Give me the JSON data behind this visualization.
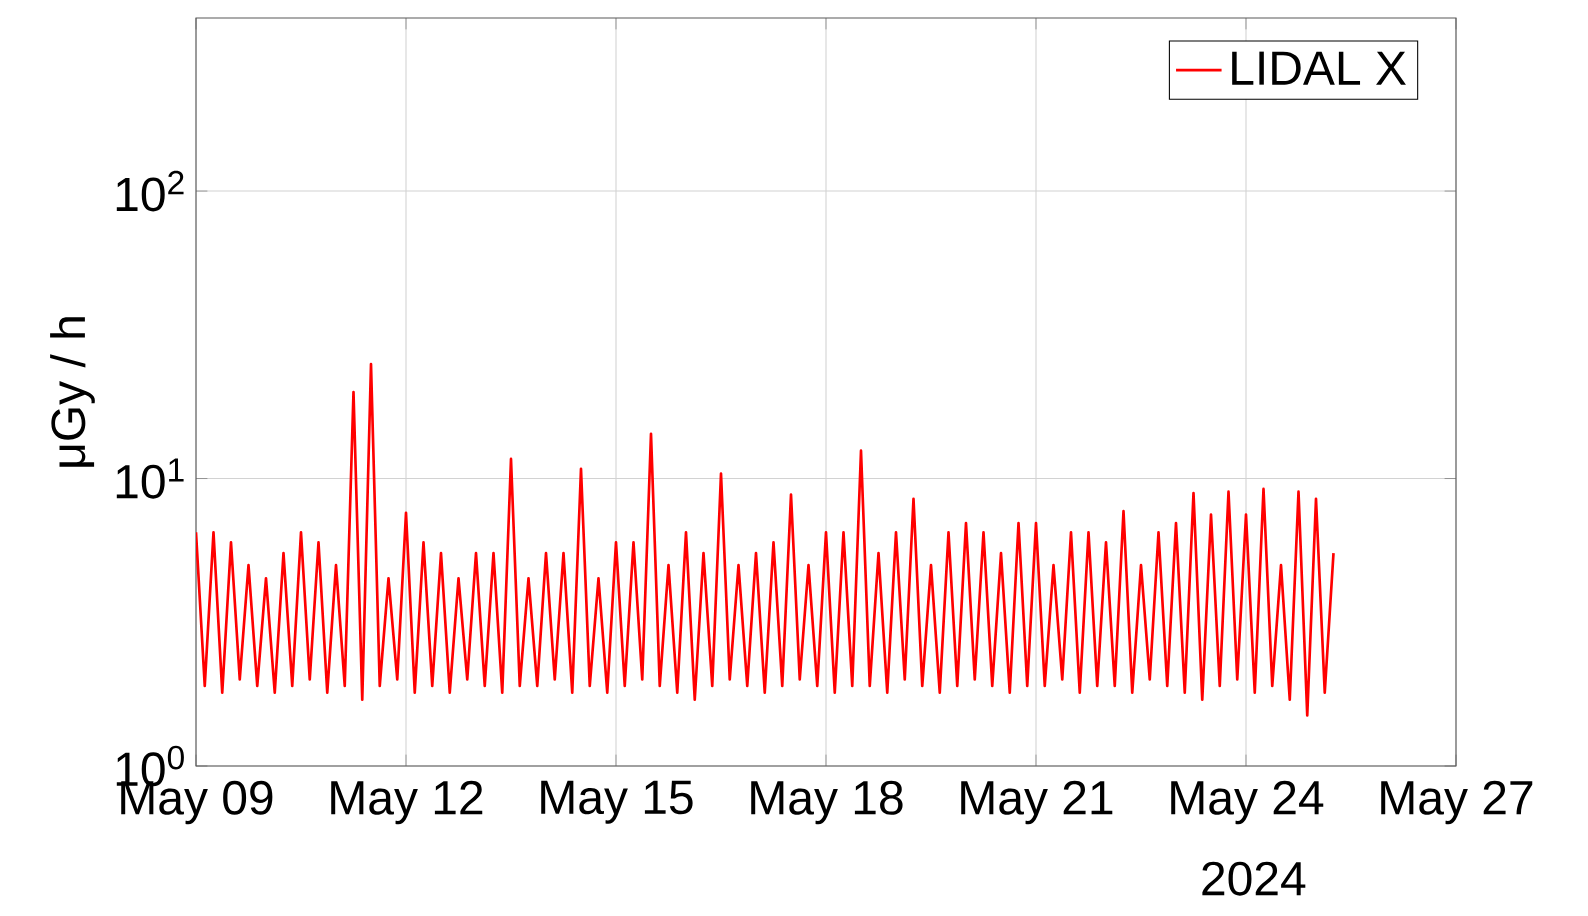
{
  "chart_data": {
    "type": "line",
    "ylabel": "μGy / h",
    "log": "y",
    "grid": true,
    "legend": "top right",
    "xlim": [
      "2024-05-09",
      "2024-05-27"
    ],
    "xticks": [
      {
        "value": "2024-05-09",
        "label": "May 09"
      },
      {
        "value": "2024-05-12",
        "label": "May 12"
      },
      {
        "value": "2024-05-15",
        "label": "May 15"
      },
      {
        "value": "2024-05-18",
        "label": "May 18"
      },
      {
        "value": "2024-05-21",
        "label": "May 21"
      },
      {
        "value": "2024-05-24",
        "label": "May 24"
      },
      {
        "value": "2024-05-27",
        "label": "May 27"
      }
    ],
    "ylim": [
      1,
      400
    ],
    "yticks": [
      {
        "value": 1,
        "label": "10$^{0}$"
      },
      {
        "value": 10,
        "label": "10$^{1}$"
      },
      {
        "value": 100,
        "label": "10$^{2}$"
      }
    ],
    "annotations": [
      "2024"
    ],
    "series": [
      {
        "name": "LIDAL X",
        "color": "#ff0000",
        "line_style": "solid",
        "x": [
          "2024-05-09T00:00",
          "2024-05-09T03:00",
          "2024-05-09T06:00",
          "2024-05-09T09:00",
          "2024-05-09T12:00",
          "2024-05-09T15:00",
          "2024-05-09T18:00",
          "2024-05-09T21:00",
          "2024-05-10T00:00",
          "2024-05-10T03:00",
          "2024-05-10T06:00",
          "2024-05-10T09:00",
          "2024-05-10T12:00",
          "2024-05-10T15:00",
          "2024-05-10T18:00",
          "2024-05-10T21:00",
          "2024-05-11T00:00",
          "2024-05-11T03:00",
          "2024-05-11T06:00",
          "2024-05-11T09:00",
          "2024-05-11T12:00",
          "2024-05-11T15:00",
          "2024-05-11T18:00",
          "2024-05-11T21:00",
          "2024-05-12T00:00",
          "2024-05-12T03:00",
          "2024-05-12T06:00",
          "2024-05-12T09:00",
          "2024-05-12T12:00",
          "2024-05-12T15:00",
          "2024-05-12T18:00",
          "2024-05-12T21:00",
          "2024-05-13T00:00",
          "2024-05-13T03:00",
          "2024-05-13T06:00",
          "2024-05-13T09:00",
          "2024-05-13T12:00",
          "2024-05-13T15:00",
          "2024-05-13T18:00",
          "2024-05-13T21:00",
          "2024-05-14T00:00",
          "2024-05-14T03:00",
          "2024-05-14T06:00",
          "2024-05-14T09:00",
          "2024-05-14T12:00",
          "2024-05-14T15:00",
          "2024-05-14T18:00",
          "2024-05-14T21:00",
          "2024-05-15T00:00",
          "2024-05-15T03:00",
          "2024-05-15T06:00",
          "2024-05-15T09:00",
          "2024-05-15T12:00",
          "2024-05-15T15:00",
          "2024-05-15T18:00",
          "2024-05-15T21:00",
          "2024-05-16T00:00",
          "2024-05-16T03:00",
          "2024-05-16T06:00",
          "2024-05-16T09:00",
          "2024-05-16T12:00",
          "2024-05-16T15:00",
          "2024-05-16T18:00",
          "2024-05-16T21:00",
          "2024-05-17T00:00",
          "2024-05-17T03:00",
          "2024-05-17T06:00",
          "2024-05-17T09:00",
          "2024-05-17T12:00",
          "2024-05-17T15:00",
          "2024-05-17T18:00",
          "2024-05-17T21:00",
          "2024-05-18T00:00",
          "2024-05-18T03:00",
          "2024-05-18T06:00",
          "2024-05-18T09:00",
          "2024-05-18T12:00",
          "2024-05-18T15:00",
          "2024-05-18T18:00",
          "2024-05-18T21:00",
          "2024-05-19T00:00",
          "2024-05-19T03:00",
          "2024-05-19T06:00",
          "2024-05-19T09:00",
          "2024-05-19T12:00",
          "2024-05-19T15:00",
          "2024-05-19T18:00",
          "2024-05-19T21:00",
          "2024-05-20T00:00",
          "2024-05-20T03:00",
          "2024-05-20T06:00",
          "2024-05-20T09:00",
          "2024-05-20T12:00",
          "2024-05-20T15:00",
          "2024-05-20T18:00",
          "2024-05-20T21:00",
          "2024-05-21T00:00",
          "2024-05-21T03:00",
          "2024-05-21T06:00",
          "2024-05-21T09:00",
          "2024-05-21T12:00",
          "2024-05-21T15:00",
          "2024-05-21T18:00",
          "2024-05-21T21:00",
          "2024-05-22T00:00",
          "2024-05-22T03:00",
          "2024-05-22T06:00",
          "2024-05-22T09:00",
          "2024-05-22T12:00",
          "2024-05-22T15:00",
          "2024-05-22T18:00",
          "2024-05-22T21:00",
          "2024-05-23T00:00",
          "2024-05-23T03:00",
          "2024-05-23T06:00",
          "2024-05-23T09:00",
          "2024-05-23T12:00",
          "2024-05-23T15:00",
          "2024-05-23T18:00",
          "2024-05-23T21:00",
          "2024-05-24T00:00",
          "2024-05-24T03:00",
          "2024-05-24T06:00",
          "2024-05-24T09:00",
          "2024-05-24T12:00",
          "2024-05-24T15:00",
          "2024-05-24T18:00",
          "2024-05-24T21:00",
          "2024-05-25T00:00",
          "2024-05-25T03:00",
          "2024-05-25T06:00"
        ],
        "values": [
          6.5,
          1.9,
          6.5,
          1.8,
          6.0,
          2.0,
          5.0,
          1.9,
          4.5,
          1.8,
          5.5,
          1.9,
          6.5,
          2.0,
          6.0,
          1.8,
          5.0,
          1.9,
          20,
          1.7,
          25,
          1.9,
          4.5,
          2.0,
          7.6,
          1.8,
          6.0,
          1.9,
          5.5,
          1.8,
          4.5,
          2.0,
          5.5,
          1.9,
          5.5,
          1.8,
          11.7,
          1.9,
          4.5,
          1.9,
          5.5,
          2.0,
          5.5,
          1.8,
          10.8,
          1.9,
          4.5,
          1.8,
          6.0,
          1.9,
          6.0,
          2.0,
          14.3,
          1.9,
          5.0,
          1.8,
          6.5,
          1.7,
          5.5,
          1.9,
          10.4,
          2.0,
          5.0,
          1.9,
          5.5,
          1.8,
          6.0,
          1.9,
          8.8,
          2.0,
          5.0,
          1.9,
          6.5,
          1.8,
          6.5,
          1.9,
          12.5,
          1.9,
          5.5,
          1.8,
          6.5,
          2.0,
          8.5,
          1.9,
          5.0,
          1.8,
          6.5,
          1.9,
          7.0,
          2.0,
          6.5,
          1.9,
          5.5,
          1.8,
          7.0,
          1.9,
          7.0,
          1.9,
          5.0,
          2.0,
          6.5,
          1.8,
          6.5,
          1.9,
          6.0,
          1.9,
          7.7,
          1.8,
          5.0,
          2.0,
          6.5,
          1.9,
          7.0,
          1.8,
          8.9,
          1.7,
          7.5,
          1.9,
          9.0,
          2.0,
          7.5,
          1.8,
          9.2,
          1.9,
          5.0,
          1.7,
          9.0,
          1.5,
          8.5,
          1.8,
          5.5
        ]
      }
    ]
  }
}
